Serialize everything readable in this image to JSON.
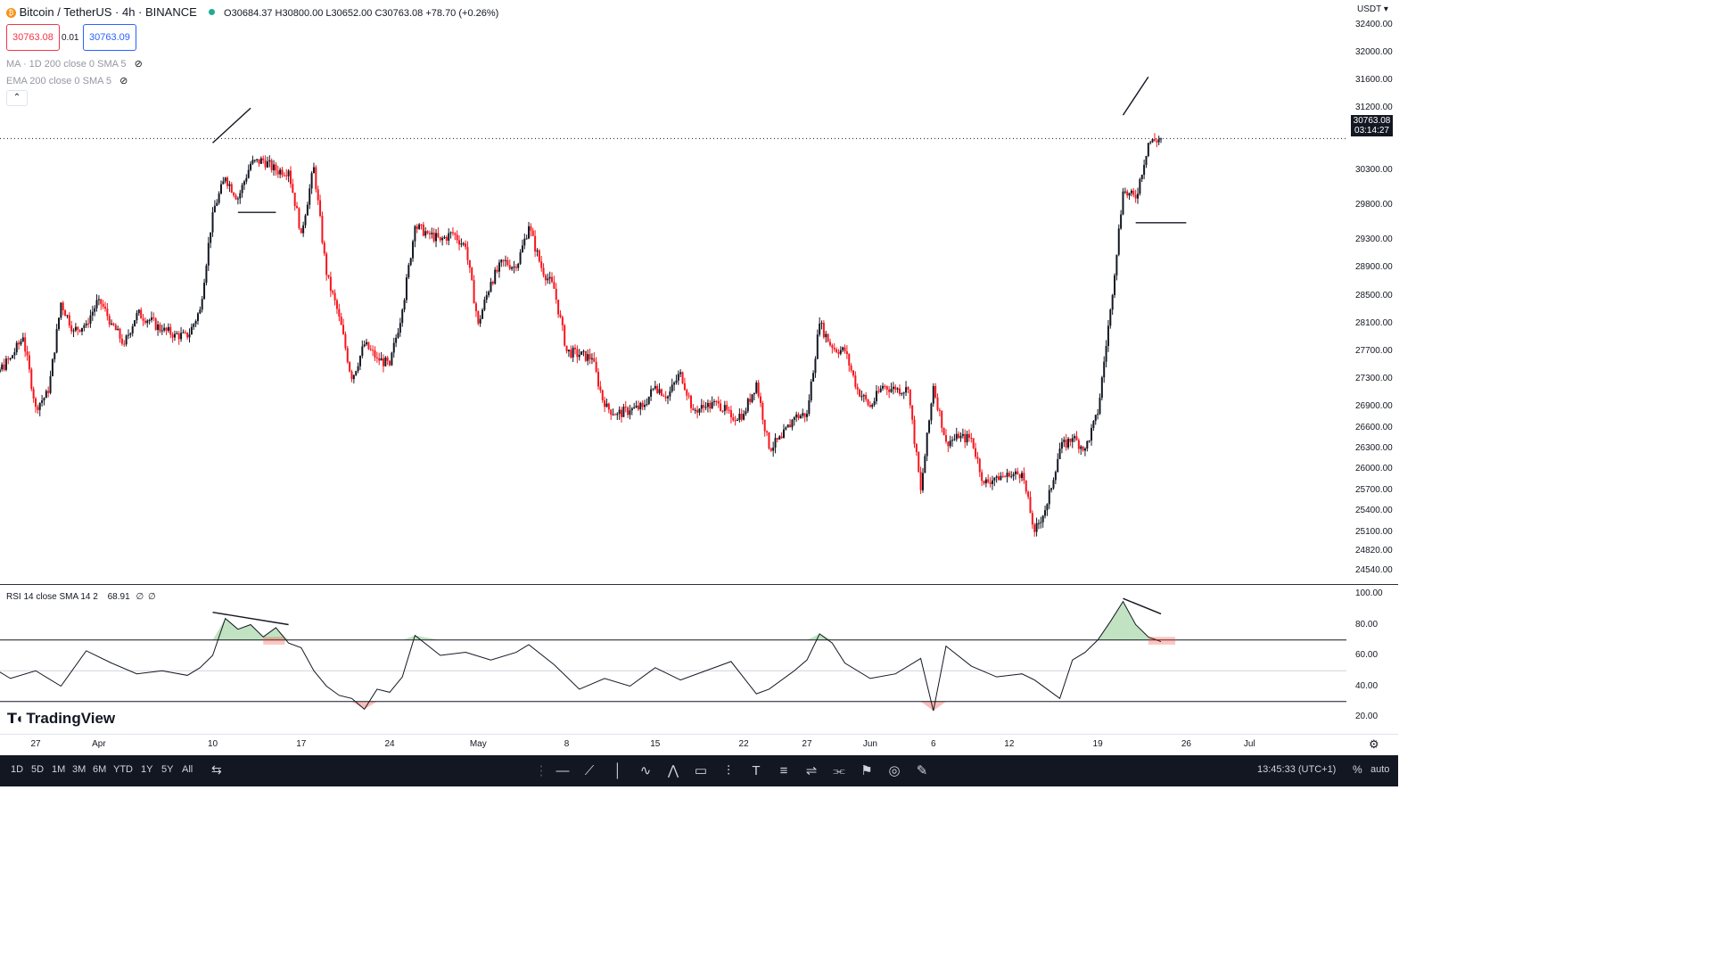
{
  "header": {
    "symbol": "Bitcoin / TetherUS · 4h · BINANCE",
    "ohlc": "O30684.37 H30800.00 L30652.00 C30763.08 +78.70 (+0.26%)",
    "sell_price": "30763.08",
    "spread": "0.01",
    "buy_price": "30763.09",
    "currency": "USDT",
    "indicator_ma": "MA · 1D 200 close 0 SMA 5",
    "indicator_ema": "EMA 200 close 0 SMA 5"
  },
  "price_tag": {
    "price": "30763.08",
    "countdown": "03:14:27"
  },
  "rsi_legend": {
    "label": "RSI 14 close SMA 14 2",
    "value": "68.91",
    "na1": "∅",
    "na2": "∅"
  },
  "brand": "TradingView",
  "bottom_bar": {
    "ranges": [
      "1D",
      "5D",
      "1M",
      "3M",
      "6M",
      "YTD",
      "1Y",
      "5Y",
      "All"
    ],
    "clock": "13:45:33 (UTC+1)",
    "percent": "%",
    "auto": "auto"
  },
  "colors": {
    "up": "#131722",
    "down": "#f7141c",
    "rsi_overbought": "#4caf50",
    "rsi_oversold": "#f44336",
    "brand_blue": "#2962ff"
  },
  "chart_data": [
    {
      "type": "candlestick",
      "title": "Bitcoin / TetherUS · 4h · BINANCE",
      "y_ticks": [
        24540,
        24820,
        25100,
        25400,
        25700,
        26000,
        26300,
        26600,
        26900,
        27300,
        27700,
        28100,
        28500,
        28900,
        29300,
        29800,
        30300,
        30763.08,
        31200,
        31600,
        32000,
        32400
      ],
      "y_tick_labels": [
        "24540.00",
        "24820.00",
        "25100.00",
        "25400.00",
        "25700.00",
        "26000.00",
        "26300.00",
        "26600.00",
        "26900.00",
        "27300.00",
        "27700.00",
        "28100.00",
        "28500.00",
        "28900.00",
        "29300.00",
        "29800.00",
        "30300.00",
        "30763.08",
        "31200.00",
        "31600.00",
        "32000.00",
        "32400.00"
      ],
      "x_tick_labels": [
        "27",
        "Apr",
        "10",
        "17",
        "24",
        "May",
        "8",
        "15",
        "22",
        "27",
        "Jun",
        "6",
        "12",
        "19",
        "26",
        "Jul"
      ],
      "ylim": [
        24350,
        32500
      ],
      "close_path": [
        {
          "date": "Mar 23",
          "close": 28200
        },
        {
          "date": "Mar 24",
          "close": 27400
        },
        {
          "date": "Mar 25",
          "close": 27600
        },
        {
          "date": "Mar 26",
          "close": 27900
        },
        {
          "date": "Mar 27",
          "close": 26900
        },
        {
          "date": "Mar 28",
          "close": 27100
        },
        {
          "date": "Mar 29",
          "close": 28400
        },
        {
          "date": "Mar 30",
          "close": 28000
        },
        {
          "date": "Mar 31",
          "close": 28100
        },
        {
          "date": "Apr 1",
          "close": 28450
        },
        {
          "date": "Apr 2",
          "close": 28100
        },
        {
          "date": "Apr 3",
          "close": 27800
        },
        {
          "date": "Apr 4",
          "close": 28250
        },
        {
          "date": "Apr 5",
          "close": 28150
        },
        {
          "date": "Apr 6",
          "close": 28000
        },
        {
          "date": "Apr 7",
          "close": 27950
        },
        {
          "date": "Apr 8",
          "close": 27900
        },
        {
          "date": "Apr 9",
          "close": 28300
        },
        {
          "date": "Apr 10",
          "close": 29700
        },
        {
          "date": "Apr 11",
          "close": 30200
        },
        {
          "date": "Apr 12",
          "close": 29900
        },
        {
          "date": "Apr 13",
          "close": 30400
        },
        {
          "date": "Apr 14",
          "close": 30450
        },
        {
          "date": "Apr 15",
          "close": 30300
        },
        {
          "date": "Apr 16",
          "close": 30300
        },
        {
          "date": "Apr 17",
          "close": 29400
        },
        {
          "date": "Apr 18",
          "close": 30350
        },
        {
          "date": "Apr 19",
          "close": 28800
        },
        {
          "date": "Apr 20",
          "close": 28200
        },
        {
          "date": "Apr 21",
          "close": 27300
        },
        {
          "date": "Apr 22",
          "close": 27800
        },
        {
          "date": "Apr 23",
          "close": 27600
        },
        {
          "date": "Apr 24",
          "close": 27500
        },
        {
          "date": "Apr 25",
          "close": 28300
        },
        {
          "date": "Apr 26",
          "close": 29500
        },
        {
          "date": "Apr 27",
          "close": 29400
        },
        {
          "date": "Apr 28",
          "close": 29300
        },
        {
          "date": "Apr 29",
          "close": 29400
        },
        {
          "date": "Apr 30",
          "close": 29200
        },
        {
          "date": "May 1",
          "close": 28100
        },
        {
          "date": "May 2",
          "close": 28700
        },
        {
          "date": "May 3",
          "close": 29000
        },
        {
          "date": "May 4",
          "close": 28900
        },
        {
          "date": "May 5",
          "close": 29500
        },
        {
          "date": "May 6",
          "close": 28900
        },
        {
          "date": "May 7",
          "close": 28600
        },
        {
          "date": "May 8",
          "close": 27700
        },
        {
          "date": "May 9",
          "close": 27650
        },
        {
          "date": "May 10",
          "close": 27600
        },
        {
          "date": "May 11",
          "close": 26900
        },
        {
          "date": "May 12",
          "close": 26800
        },
        {
          "date": "May 13",
          "close": 26850
        },
        {
          "date": "May 14",
          "close": 26900
        },
        {
          "date": "May 15",
          "close": 27200
        },
        {
          "date": "May 16",
          "close": 27050
        },
        {
          "date": "May 17",
          "close": 27400
        },
        {
          "date": "May 18",
          "close": 26850
        },
        {
          "date": "May 19",
          "close": 26900
        },
        {
          "date": "May 20",
          "close": 26950
        },
        {
          "date": "May 21",
          "close": 26750
        },
        {
          "date": "May 22",
          "close": 26800
        },
        {
          "date": "May 23",
          "close": 27250
        },
        {
          "date": "May 24",
          "close": 26300
        },
        {
          "date": "May 25",
          "close": 26450
        },
        {
          "date": "May 26",
          "close": 26750
        },
        {
          "date": "May 27",
          "close": 26800
        },
        {
          "date": "May 28",
          "close": 28100
        },
        {
          "date": "May 29",
          "close": 27750
        },
        {
          "date": "May 30",
          "close": 27700
        },
        {
          "date": "May 31",
          "close": 27150
        },
        {
          "date": "Jun 1",
          "close": 26900
        },
        {
          "date": "Jun 2",
          "close": 27200
        },
        {
          "date": "Jun 3",
          "close": 27150
        },
        {
          "date": "Jun 4",
          "close": 27150
        },
        {
          "date": "Jun 5",
          "close": 25700
        },
        {
          "date": "Jun 6",
          "close": 27200
        },
        {
          "date": "Jun 7",
          "close": 26400
        },
        {
          "date": "Jun 8",
          "close": 26450
        },
        {
          "date": "Jun 9",
          "close": 26450
        },
        {
          "date": "Jun 10",
          "close": 25800
        },
        {
          "date": "Jun 11",
          "close": 25900
        },
        {
          "date": "Jun 12",
          "close": 25900
        },
        {
          "date": "Jun 13",
          "close": 25950
        },
        {
          "date": "Jun 14",
          "close": 25100
        },
        {
          "date": "Jun 15",
          "close": 25500
        },
        {
          "date": "Jun 16",
          "close": 26300
        },
        {
          "date": "Jun 17",
          "close": 26450
        },
        {
          "date": "Jun 18",
          "close": 26300
        },
        {
          "date": "Jun 19",
          "close": 26800
        },
        {
          "date": "Jun 20",
          "close": 28300
        },
        {
          "date": "Jun 21",
          "close": 30000
        },
        {
          "date": "Jun 22",
          "close": 29900
        },
        {
          "date": "Jun 23",
          "close": 30700
        },
        {
          "date": "Jun 24",
          "close": 30763.08
        }
      ],
      "drawings": [
        {
          "type": "trendline",
          "from": {
            "date": "Apr 10",
            "price": 30700
          },
          "to": {
            "date": "Apr 13",
            "price": 31200
          }
        },
        {
          "type": "horizontal",
          "from": {
            "date": "Apr 12",
            "price": 29700
          },
          "to": {
            "date": "Apr 15",
            "price": 29700
          }
        },
        {
          "type": "trendline",
          "from": {
            "date": "Jun 21",
            "price": 31100
          },
          "to": {
            "date": "Jun 23",
            "price": 31650
          }
        },
        {
          "type": "horizontal",
          "from": {
            "date": "Jun 22",
            "price": 29550
          },
          "to": {
            "date": "Jun 26",
            "price": 29550
          }
        }
      ]
    },
    {
      "type": "line",
      "title": "RSI 14 close SMA 14 2",
      "y_ticks": [
        20,
        40,
        60,
        80,
        100
      ],
      "y_tick_labels": [
        "20.00",
        "40.00",
        "60.00",
        "80.00",
        "100.00"
      ],
      "ylim": [
        15,
        100
      ],
      "bands": [
        30,
        50,
        70
      ],
      "last_value": 68.91,
      "x": [
        "Mar 23",
        "Mar 25",
        "Mar 27",
        "Mar 29",
        "Mar 31",
        "Apr 2",
        "Apr 4",
        "Apr 6",
        "Apr 8",
        "Apr 9",
        "Apr 10",
        "Apr 11",
        "Apr 12",
        "Apr 13",
        "Apr 14",
        "Apr 15",
        "Apr 16",
        "Apr 17",
        "Apr 18",
        "Apr 19",
        "Apr 20",
        "Apr 21",
        "Apr 22",
        "Apr 23",
        "Apr 24",
        "Apr 25",
        "Apr 26",
        "Apr 28",
        "Apr 30",
        "May 2",
        "May 4",
        "May 5",
        "May 7",
        "May 9",
        "May 11",
        "May 13",
        "May 15",
        "May 17",
        "May 19",
        "May 21",
        "May 23",
        "May 24",
        "May 26",
        "May 27",
        "May 28",
        "May 29",
        "May 30",
        "Jun 1",
        "Jun 3",
        "Jun 5",
        "Jun 6",
        "Jun 7",
        "Jun 9",
        "Jun 11",
        "Jun 13",
        "Jun 14",
        "Jun 15",
        "Jun 16",
        "Jun 17",
        "Jun 18",
        "Jun 19",
        "Jun 20",
        "Jun 21",
        "Jun 22",
        "Jun 23",
        "Jun 24"
      ],
      "values": [
        55,
        45,
        50,
        40,
        63,
        55,
        48,
        50,
        47,
        52,
        60,
        84,
        77,
        80,
        72,
        78,
        68,
        65,
        50,
        40,
        34,
        32,
        25,
        38,
        36,
        46,
        73,
        60,
        62,
        57,
        62,
        67,
        54,
        38,
        45,
        40,
        52,
        44,
        50,
        56,
        35,
        38,
        50,
        57,
        74,
        68,
        55,
        45,
        48,
        58,
        24,
        66,
        53,
        46,
        48,
        44,
        38,
        32,
        57,
        62,
        70,
        82,
        95,
        80,
        72,
        68.91
      ]
    }
  ]
}
